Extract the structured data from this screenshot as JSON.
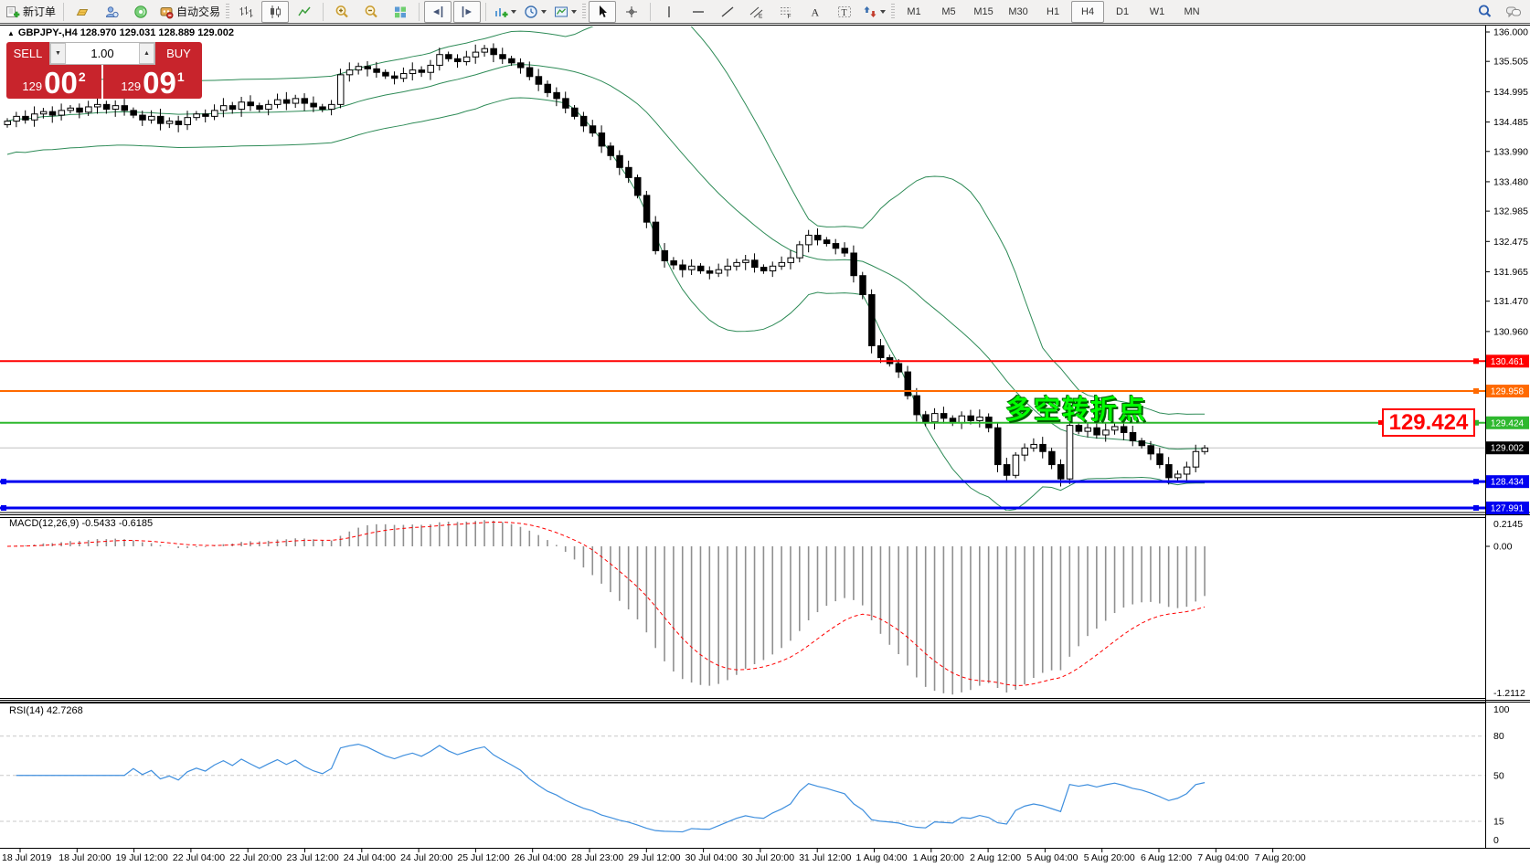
{
  "toolbar": {
    "new_order": "新订单",
    "autotrading": "自动交易",
    "timeframes": [
      "M1",
      "M5",
      "M15",
      "M30",
      "H1",
      "H4",
      "D1",
      "W1",
      "MN"
    ],
    "active_timeframe": "H4"
  },
  "symbol_bar": {
    "text": "GBPJPY-,H4  128.970 129.031 128.889 129.002"
  },
  "trade_panel": {
    "sell_label": "SELL",
    "buy_label": "BUY",
    "volume": "1.00",
    "sell_small": "129",
    "sell_big": "00",
    "sell_sup": "2",
    "buy_small": "129",
    "buy_big": "09",
    "buy_sup": "1"
  },
  "annotation": {
    "text": "多空转折点",
    "color": "#00ff00"
  },
  "callout": {
    "text": "129.424",
    "color": "#ff0000"
  },
  "indicators_labels": {
    "macd": "MACD(12,26,9) -0.5433 -0.6185",
    "rsi": "RSI(14) 42.7268"
  },
  "price_axis_ticks": [
    "136.000",
    "135.505",
    "134.995",
    "134.485",
    "133.990",
    "133.480",
    "132.985",
    "132.475",
    "131.965",
    "131.470",
    "130.960"
  ],
  "macd_axis": [
    "0.2145",
    "0.00",
    "-1.2112"
  ],
  "rsi_axis": [
    "100",
    "80",
    "50",
    "15",
    "0"
  ],
  "time_axis": [
    "18 Jul 2019",
    "18 Jul 20:00",
    "19 Jul 12:00",
    "22 Jul 04:00",
    "22 Jul 20:00",
    "23 Jul 12:00",
    "24 Jul 04:00",
    "24 Jul 20:00",
    "25 Jul 12:00",
    "26 Jul 04:00",
    "28 Jul 23:00",
    "29 Jul 12:00",
    "30 Jul 04:00",
    "30 Jul 20:00",
    "31 Jul 12:00",
    "1 Aug 04:00",
    "1 Aug 20:00",
    "2 Aug 12:00",
    "5 Aug 04:00",
    "5 Aug 20:00",
    "6 Aug 12:00",
    "7 Aug 04:00",
    "7 Aug 20:00"
  ],
  "levels": [
    {
      "price": "130.461",
      "value": 130.461,
      "color": "#ff0000",
      "width": 2
    },
    {
      "price": "129.958",
      "value": 129.958,
      "color": "#ff6a00",
      "width": 2
    },
    {
      "price": "129.424",
      "value": 129.424,
      "color": "#2eb82e",
      "width": 2
    },
    {
      "price": "128.434",
      "value": 128.434,
      "color": "#0000f0",
      "width": 3
    },
    {
      "price": "127.991",
      "value": 127.991,
      "color": "#0000f0",
      "width": 3
    }
  ],
  "current_price": {
    "label": "129.002",
    "value": 129.002
  },
  "chart_data": {
    "type": "candlestick",
    "title": "GBPJPY-,H4",
    "symbol": "GBPJPY-",
    "period": "H4",
    "ohlc_display": {
      "open": "128.970",
      "high": "129.031",
      "low": "128.889",
      "close": "129.002"
    },
    "price_range": [
      127.9,
      136.0
    ],
    "closes": [
      134.5,
      134.58,
      134.52,
      134.62,
      134.66,
      134.6,
      134.68,
      134.72,
      134.65,
      134.74,
      134.78,
      134.7,
      134.76,
      134.68,
      134.6,
      134.52,
      134.58,
      134.46,
      134.5,
      134.44,
      134.56,
      134.62,
      134.58,
      134.68,
      134.76,
      134.7,
      134.82,
      134.76,
      134.7,
      134.78,
      134.86,
      134.8,
      134.88,
      134.8,
      134.74,
      134.7,
      134.78,
      135.28,
      135.36,
      135.42,
      135.38,
      135.32,
      135.26,
      135.22,
      135.3,
      135.36,
      135.32,
      135.44,
      135.62,
      135.55,
      135.5,
      135.58,
      135.66,
      135.72,
      135.62,
      135.55,
      135.48,
      135.4,
      135.25,
      135.12,
      134.98,
      134.88,
      134.72,
      134.58,
      134.42,
      134.3,
      134.08,
      133.92,
      133.72,
      133.55,
      133.25,
      132.8,
      132.32,
      132.15,
      132.08,
      132.0,
      132.06,
      131.98,
      131.94,
      132.0,
      132.06,
      132.12,
      132.16,
      132.04,
      131.98,
      132.06,
      132.12,
      132.2,
      132.42,
      132.58,
      132.5,
      132.44,
      132.36,
      132.28,
      131.9,
      131.58,
      130.72,
      130.52,
      130.42,
      130.28,
      129.88,
      129.56,
      129.44,
      129.58,
      129.5,
      129.42,
      129.54,
      129.46,
      129.52,
      129.34,
      128.72,
      128.54,
      128.88,
      129.0,
      129.06,
      128.94,
      128.72,
      128.48,
      129.38,
      129.28,
      129.34,
      129.22,
      129.3,
      129.36,
      129.26,
      129.12,
      129.04,
      128.9,
      128.72,
      128.5,
      128.56,
      128.68,
      128.94,
      129.0
    ],
    "overlays": [
      {
        "name": "Bollinger Bands",
        "period": 20,
        "deviation": 2,
        "color": "#2e8b57"
      }
    ],
    "subcharts": [
      {
        "name": "MACD",
        "fast": 12,
        "slow": 26,
        "signal": 9,
        "last_values": [
          -0.5433,
          -0.6185
        ],
        "range": [
          -1.2112,
          0.2145
        ]
      },
      {
        "name": "RSI",
        "period": 14,
        "last_value": 42.7268,
        "levels": [
          80,
          50,
          15
        ]
      }
    ]
  }
}
